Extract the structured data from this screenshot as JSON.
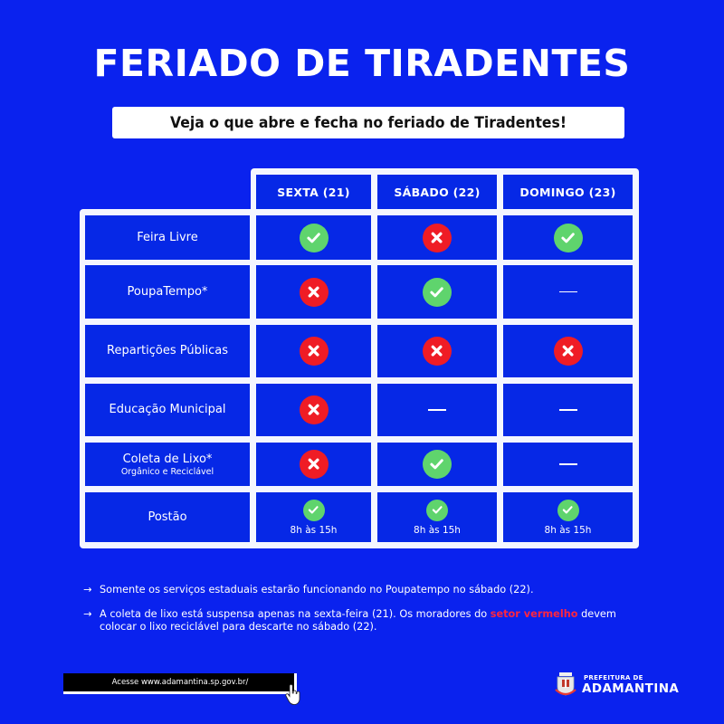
{
  "header": {
    "title": "FERIADO DE TIRADENTES",
    "subtitle": "Veja o que abre e fecha no feriado de Tiradentes!"
  },
  "colors": {
    "background": "#0a22ee",
    "cell": "#0628e6",
    "open": "#5fd46d",
    "closed": "#ef1c25",
    "highlight": "#ff2640"
  },
  "table": {
    "columns": [
      "SEXTA (21)",
      "SÁBADO (22)",
      "DOMINGO (23)"
    ],
    "rows": [
      {
        "label": "Feira Livre",
        "sublabel": "",
        "values": [
          "open",
          "closed",
          "open"
        ],
        "hours": [
          "",
          "",
          ""
        ]
      },
      {
        "label": "PoupaTempo*",
        "sublabel": "",
        "values": [
          "closed",
          "open",
          "none"
        ],
        "hours": [
          "",
          "",
          ""
        ]
      },
      {
        "label": "Repartições Públicas",
        "sublabel": "",
        "values": [
          "closed",
          "closed",
          "closed"
        ],
        "hours": [
          "",
          "",
          ""
        ]
      },
      {
        "label": "Educação Municipal",
        "sublabel": "",
        "values": [
          "closed",
          "none",
          "none"
        ],
        "hours": [
          "",
          "",
          ""
        ]
      },
      {
        "label": "Coleta de Lixo*",
        "sublabel": "Orgânico e Reciclável",
        "values": [
          "closed",
          "open",
          "none"
        ],
        "hours": [
          "",
          "",
          ""
        ]
      },
      {
        "label": "Postão",
        "sublabel": "",
        "values": [
          "open",
          "open",
          "open"
        ],
        "hours": [
          "8h às 15h",
          "8h às 15h",
          "8h às 15h"
        ]
      }
    ],
    "legend": {
      "open": "check-icon",
      "closed": "x-icon",
      "none": "dash"
    }
  },
  "notes": [
    {
      "arrow": "→",
      "text": "Somente os serviços estaduais estarão funcionando no Poupatempo no sábado (22).",
      "highlight": "",
      "text_after": ""
    },
    {
      "arrow": "→",
      "text": "A coleta de lixo está suspensa apenas na sexta-feira (21). Os moradores do ",
      "highlight": "setor vermelho",
      "text_after": " devem colocar o lixo reciclável para descarte no sábado (22)."
    }
  ],
  "footer": {
    "site_button": "Acesse www.adamantina.sp.gov.br/",
    "logo_small": "PREFEITURA DE",
    "logo_big": "ADAMANTINA"
  }
}
